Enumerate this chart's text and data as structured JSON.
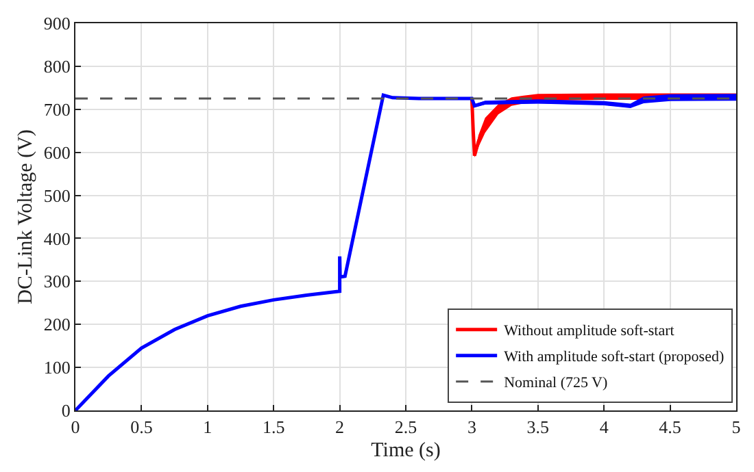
{
  "chart_data": {
    "type": "line",
    "xlabel": "Time (s)",
    "ylabel": "DC-Link Voltage (V)",
    "xlim": [
      0,
      5
    ],
    "ylim": [
      0,
      900
    ],
    "xticks": [
      0,
      0.5,
      1,
      1.5,
      2,
      2.5,
      3,
      3.5,
      4,
      4.5,
      5
    ],
    "yticks": [
      0,
      100,
      200,
      300,
      400,
      500,
      600,
      700,
      800,
      900
    ],
    "grid": true,
    "legend": "bottom right",
    "line_style": "solid",
    "marker": "none",
    "series": [
      {
        "name": "Without amplitude soft-start",
        "color": "#ff0000",
        "x": [
          3.0,
          3.01,
          3.02,
          3.05,
          3.1,
          3.2,
          3.3,
          3.5,
          4.0,
          4.5,
          5.0
        ],
        "values": [
          725,
          650,
          592,
          625,
          662,
          700,
          718,
          727,
          729,
          730,
          730
        ],
        "lower": [
          722,
          645,
          588,
          612,
          645,
          688,
          708,
          720,
          722,
          722,
          722
        ],
        "upper": [
          727,
          655,
          598,
          640,
          680,
          712,
          728,
          736,
          737,
          737,
          737
        ]
      },
      {
        "name": "With amplitude soft-start (proposed)",
        "color": "#0000ff",
        "x": [
          0,
          0.25,
          0.5,
          0.75,
          1.0,
          1.25,
          1.5,
          1.75,
          2.0,
          2.0,
          2.003,
          2.04,
          2.33,
          2.4,
          2.6,
          3.0,
          3.02,
          3.1,
          3.5,
          4.0,
          4.2,
          4.3,
          4.5,
          5.0
        ],
        "values": [
          0,
          80,
          145,
          188,
          220,
          242,
          257,
          268,
          277,
          358,
          310,
          312,
          733,
          727,
          725,
          725,
          708,
          715,
          718,
          714,
          708,
          722,
          727,
          728
        ],
        "lower": [
          null,
          null,
          null,
          null,
          null,
          null,
          null,
          null,
          null,
          null,
          null,
          null,
          null,
          null,
          null,
          null,
          705,
          711,
          713,
          709,
          703,
          714,
          719,
          720
        ],
        "upper": [
          null,
          null,
          null,
          null,
          null,
          null,
          null,
          null,
          null,
          null,
          null,
          null,
          null,
          null,
          null,
          null,
          712,
          720,
          723,
          719,
          713,
          730,
          735,
          736
        ]
      }
    ],
    "ref_lines": [
      {
        "axis": "y",
        "value": 725,
        "label": "Nominal (725 V)",
        "color": "#555555",
        "line_style": "dashed"
      }
    ]
  }
}
